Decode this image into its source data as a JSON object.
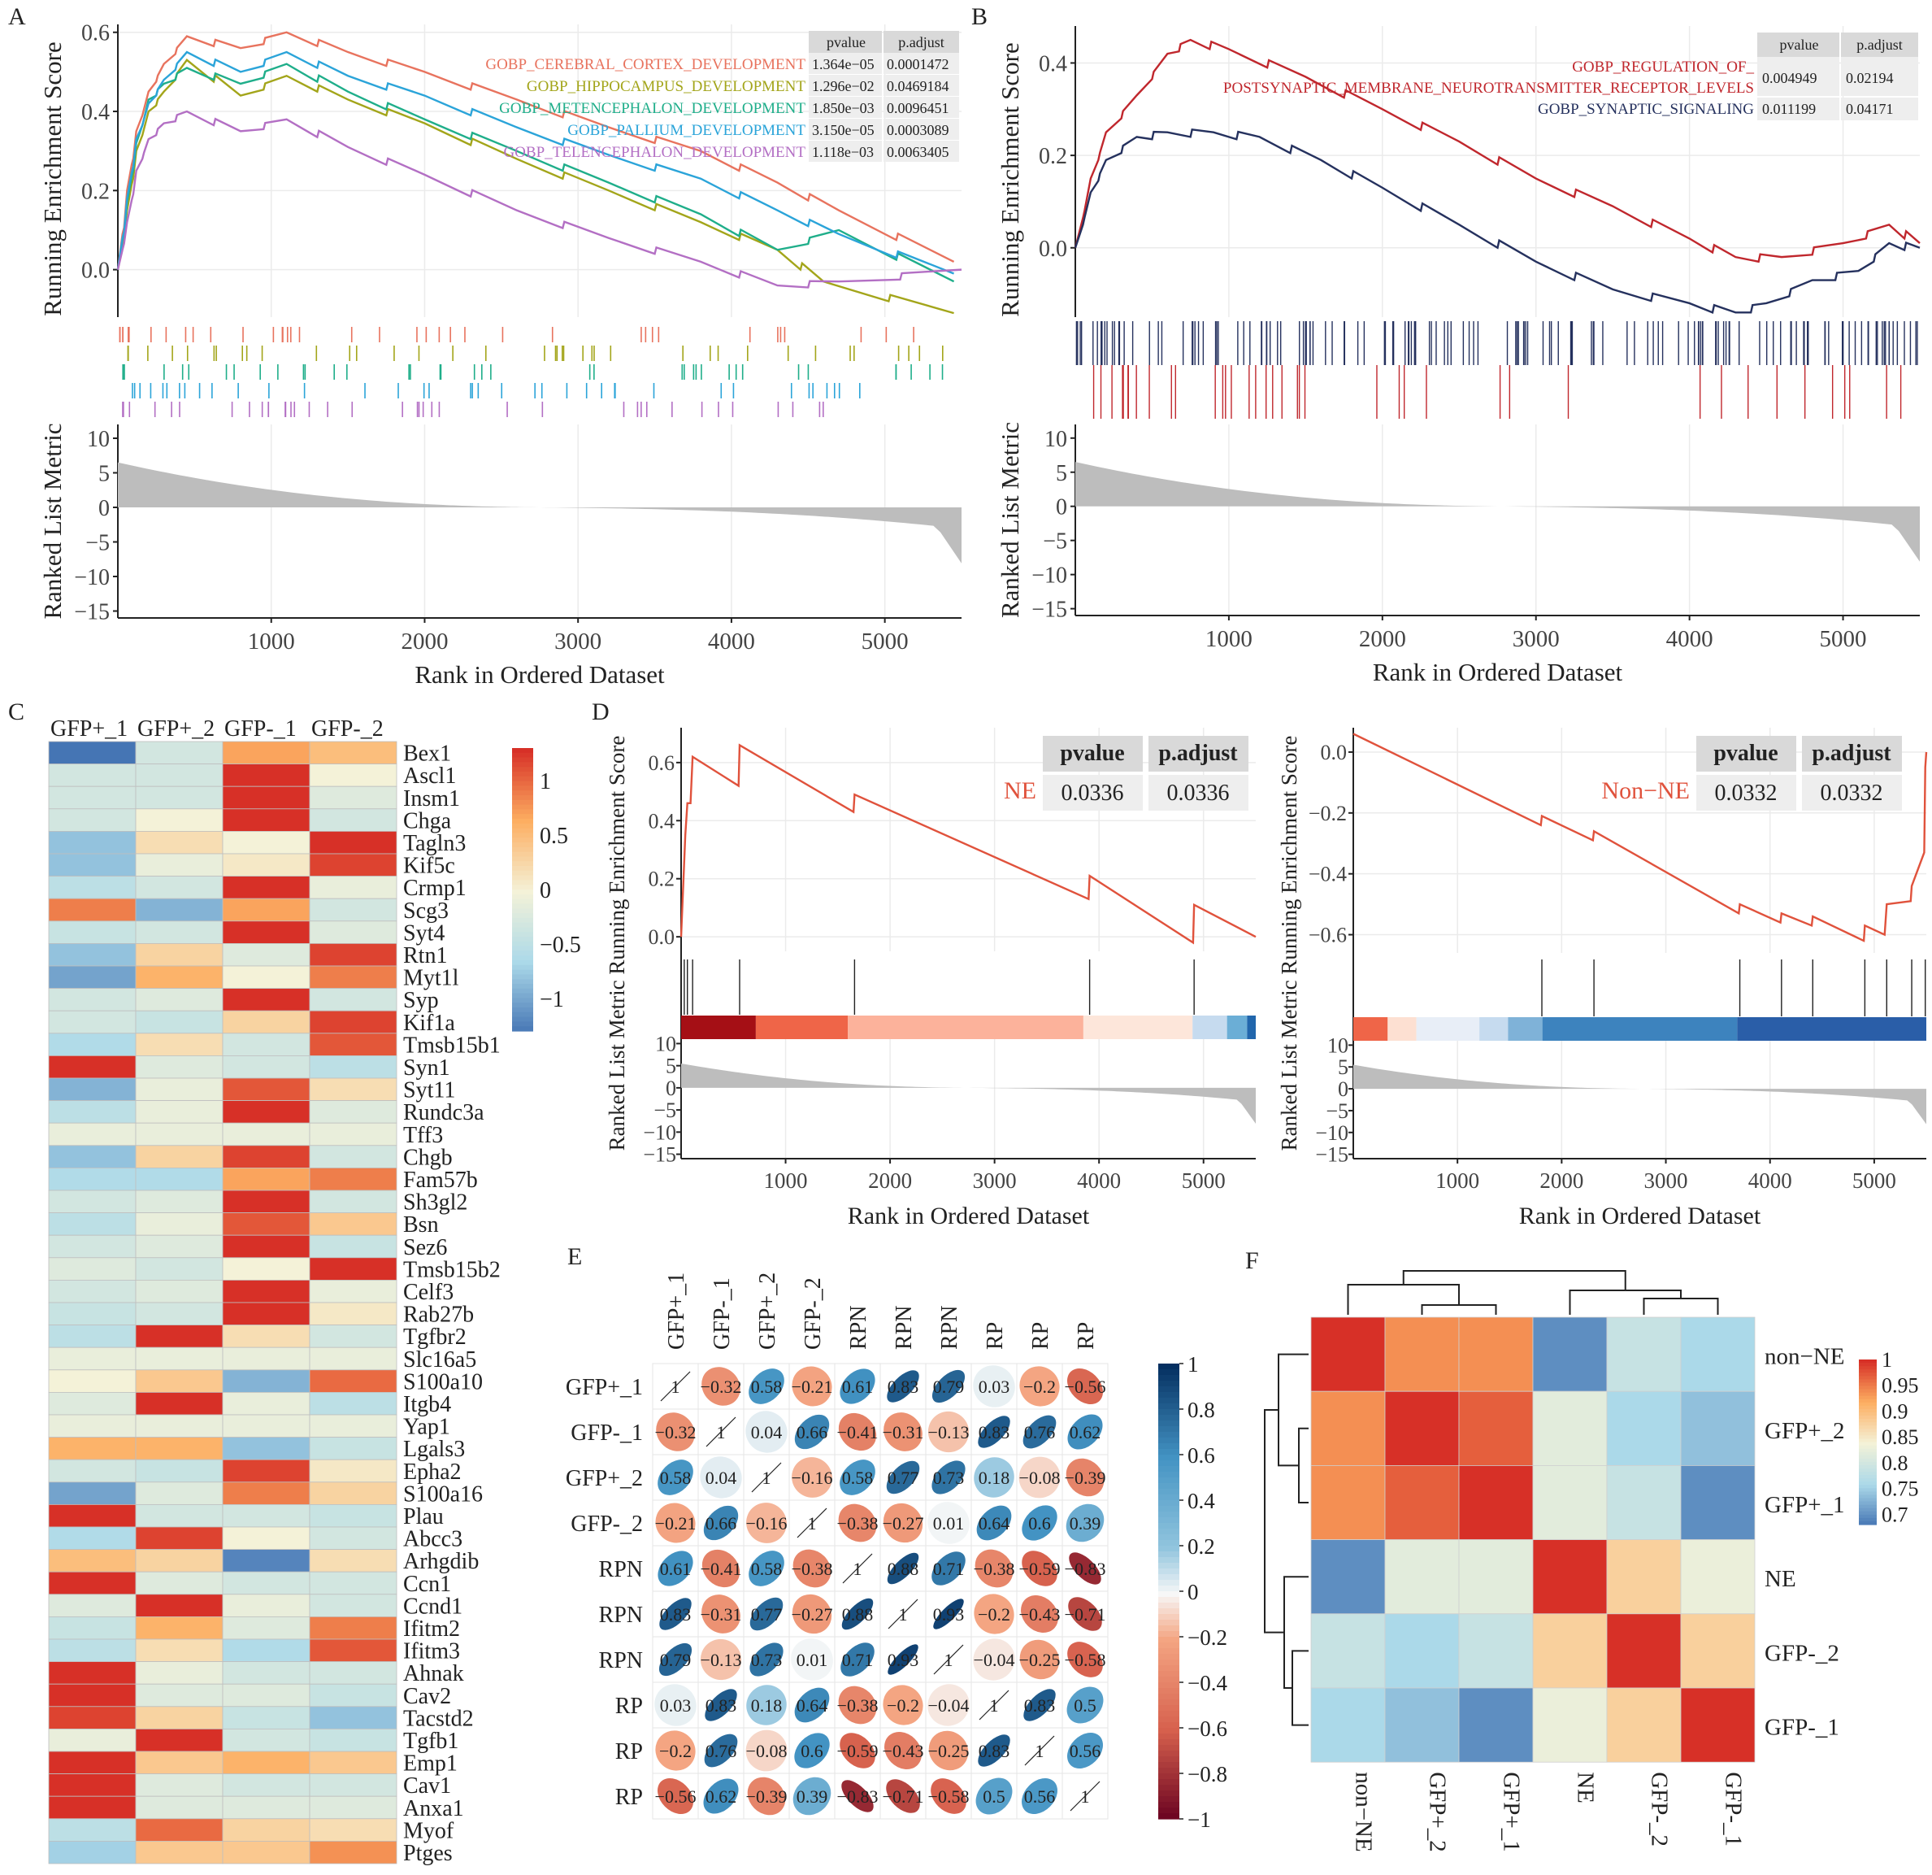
{
  "figure": {
    "panel_labels": [
      "A",
      "B",
      "C",
      "D",
      "E",
      "F"
    ],
    "running_label": "Running Enrichment Score",
    "ranked_label": "Ranked List Metric",
    "combined_label": "Ranked List Metric Running Enrichment Score",
    "rank_label": "Rank in Ordered Dataset",
    "pvalue_header": "pvalue",
    "padjust_header": "p.adjust"
  },
  "colors": {
    "red": "#d73027",
    "orange": "#f46d43",
    "yellow": "#fee090",
    "pale": "#f5f5dc",
    "lightblue": "#abd9e9",
    "blue": "#4575b4",
    "darkred": "#a50026",
    "darkblue": "#313695",
    "gseaRed": "#e8735e",
    "gseaOlive": "#a3a51a",
    "gseaTeal": "#1fae8a",
    "gseaBlue": "#2ba4d9",
    "gseaPurple": "#b36fc4"
  },
  "chart_data": [
    {
      "id": "A",
      "type": "line",
      "title": "",
      "xlabel": "Rank in Ordered Dataset",
      "ylabel": "Running Enrichment Score",
      "x_ticks": [
        1000,
        2000,
        3000,
        4000,
        5000
      ],
      "y_ticks": [
        0.0,
        0.2,
        0.4,
        0.6
      ],
      "ylim": [
        -0.12,
        0.62
      ],
      "xlim": [
        0,
        5500
      ],
      "ranked_ticks": [
        10,
        5,
        0,
        -5,
        -10,
        -15
      ],
      "series": [
        {
          "name": "GOBP_CEREBRAL_CORTEX_DEVELOPMENT",
          "pvalue": "1.364e−05",
          "padjust": "0.0001472",
          "color": "#e8735e",
          "x": [
            0,
            60,
            120,
            200,
            300,
            450,
            800,
            1100,
            1500,
            2000,
            2600,
            3200,
            3800,
            4300,
            4700,
            5450
          ],
          "y": [
            0,
            0.2,
            0.35,
            0.45,
            0.52,
            0.59,
            0.56,
            0.6,
            0.55,
            0.5,
            0.43,
            0.36,
            0.3,
            0.22,
            0.15,
            0.02
          ]
        },
        {
          "name": "GOBP_HIPPOCAMPUS_DEVELOPMENT",
          "pvalue": "1.296e−02",
          "padjust": "0.0469184",
          "color": "#a3a51a",
          "x": [
            0,
            60,
            120,
            200,
            300,
            450,
            800,
            1100,
            1500,
            2000,
            2600,
            3200,
            3800,
            4300,
            4600,
            5450
          ],
          "y": [
            0,
            0.15,
            0.3,
            0.4,
            0.45,
            0.53,
            0.44,
            0.49,
            0.43,
            0.37,
            0.28,
            0.2,
            0.12,
            0.05,
            -0.03,
            -0.11
          ]
        },
        {
          "name": "GOBP_METENCEPHALON_DEVELOPMENT",
          "pvalue": "1.850e−03",
          "padjust": "0.0096451",
          "color": "#1fae8a",
          "x": [
            0,
            60,
            120,
            200,
            300,
            450,
            800,
            1100,
            1500,
            2000,
            2600,
            3200,
            3800,
            4300,
            4700,
            5450
          ],
          "y": [
            0,
            0.17,
            0.32,
            0.43,
            0.47,
            0.51,
            0.47,
            0.52,
            0.45,
            0.38,
            0.3,
            0.22,
            0.14,
            0.05,
            0.1,
            -0.03
          ]
        },
        {
          "name": "GOBP_PALLIUM_DEVELOPMENT",
          "pvalue": "3.150e−05",
          "padjust": "0.0003089",
          "color": "#2ba4d9",
          "x": [
            0,
            60,
            120,
            200,
            300,
            450,
            800,
            1100,
            1500,
            2000,
            2600,
            3200,
            3800,
            4300,
            4700,
            5450
          ],
          "y": [
            0,
            0.18,
            0.33,
            0.42,
            0.48,
            0.55,
            0.5,
            0.55,
            0.49,
            0.44,
            0.36,
            0.29,
            0.23,
            0.15,
            0.09,
            -0.01
          ]
        },
        {
          "name": "GOBP_TELENCEPHALON_DEVELOPMENT",
          "pvalue": "1.118e−03",
          "padjust": "0.0063405",
          "color": "#b36fc4",
          "x": [
            0,
            60,
            120,
            200,
            300,
            450,
            800,
            1100,
            1500,
            2000,
            2600,
            3200,
            3800,
            4300,
            4700,
            5500
          ],
          "y": [
            0,
            0.12,
            0.25,
            0.33,
            0.37,
            0.4,
            0.35,
            0.38,
            0.31,
            0.24,
            0.15,
            0.08,
            0.02,
            -0.04,
            -0.03,
            0.0
          ]
        }
      ]
    },
    {
      "id": "B",
      "type": "line",
      "xlabel": "Rank in Ordered Dataset",
      "ylabel": "Running Enrichment Score",
      "x_ticks": [
        1000,
        2000,
        3000,
        4000,
        5000
      ],
      "y_ticks": [
        0.0,
        0.2,
        0.4
      ],
      "ylim": [
        -0.15,
        0.48
      ],
      "xlim": [
        0,
        5500
      ],
      "ranked_ticks": [
        10,
        5,
        0,
        -5,
        -10,
        -15
      ],
      "series": [
        {
          "name_line1": "GOBP_REGULATION_OF_",
          "name_line2": "POSTSYNAPTIC_MEMBRANE_NEUROTRANSMITTER_RECEPTOR_LEVELS",
          "pvalue": "0.004949",
          "padjust": "0.02194",
          "color": "#c0272d",
          "x": [
            0,
            100,
            200,
            400,
            600,
            750,
            1000,
            1500,
            2000,
            2500,
            3000,
            3500,
            4000,
            4300,
            4600,
            5000,
            5300,
            5500
          ],
          "y": [
            0,
            0.15,
            0.25,
            0.33,
            0.42,
            0.45,
            0.43,
            0.37,
            0.3,
            0.23,
            0.15,
            0.09,
            0.02,
            -0.02,
            -0.02,
            0.01,
            0.05,
            0.01
          ]
        },
        {
          "name": "GOBP_SYNAPTIC_SIGNALING",
          "pvalue": "0.011199",
          "padjust": "0.04171",
          "color": "#25315e",
          "x": [
            0,
            100,
            200,
            400,
            600,
            900,
            1200,
            1600,
            2000,
            2500,
            3000,
            3500,
            4000,
            4300,
            4500,
            4800,
            5100,
            5300,
            5500
          ],
          "y": [
            0,
            0.12,
            0.19,
            0.24,
            0.25,
            0.25,
            0.24,
            0.19,
            0.13,
            0.05,
            -0.03,
            -0.09,
            -0.12,
            -0.14,
            -0.12,
            -0.07,
            -0.05,
            0.01,
            0.0
          ]
        }
      ]
    },
    {
      "id": "C",
      "type": "heatmap",
      "columns": [
        "GFP+_1",
        "GFP+_2",
        "GFP-_1",
        "GFP-_2"
      ],
      "legend_ticks": [
        "1",
        "0.5",
        "0",
        "−0.5",
        "−1"
      ],
      "legend_range": [
        -1.3,
        1.3
      ],
      "rows": [
        "Bex1",
        "Ascl1",
        "Insm1",
        "Chga",
        "Tagln3",
        "Kif5c",
        "Crmp1",
        "Scg3",
        "Syt4",
        "Rtn1",
        "Myt1l",
        "Syp",
        "Kif1a",
        "Tmsb15b1",
        "Syn1",
        "Syt11",
        "Rundc3a",
        "Tff3",
        "Chgb",
        "Fam57b",
        "Sh3gl2",
        "Bsn",
        "Sez6",
        "Tmsb15b2",
        "Celf3",
        "Rab27b",
        "Tgfbr2",
        "Slc16a5",
        "S100a10",
        "Itgb4",
        "Yap1",
        "Lgals3",
        "Epha2",
        "S100a16",
        "Plau",
        "Abcc3",
        "Arhgdib",
        "Ccn1",
        "Ccnd1",
        "Ifitm2",
        "Ifitm3",
        "Ahnak",
        "Cav2",
        "Tacstd2",
        "Tgfb1",
        "Emp1",
        "Cav1",
        "Anxa1",
        "Myof",
        "Ptges"
      ],
      "values": [
        [
          -1.3,
          -0.3,
          0.7,
          0.5
        ],
        [
          -0.3,
          -0.3,
          1.4,
          0.0
        ],
        [
          -0.3,
          -0.3,
          1.4,
          -0.2
        ],
        [
          -0.3,
          0.0,
          1.4,
          -0.3
        ],
        [
          -0.8,
          0.2,
          0.0,
          1.3
        ],
        [
          -0.8,
          -0.1,
          0.1,
          1.2
        ],
        [
          -0.5,
          -0.3,
          1.3,
          -0.1
        ],
        [
          0.9,
          -0.9,
          0.7,
          -0.3
        ],
        [
          -0.4,
          -0.3,
          1.4,
          -0.2
        ],
        [
          -0.8,
          0.3,
          -0.2,
          1.2
        ],
        [
          -1.0,
          0.6,
          0.0,
          0.9
        ],
        [
          -0.3,
          -0.2,
          1.4,
          -0.3
        ],
        [
          -0.3,
          -0.4,
          0.3,
          1.2
        ],
        [
          -0.6,
          0.2,
          -0.3,
          1.1
        ],
        [
          1.4,
          -0.2,
          -0.3,
          -0.5
        ],
        [
          -0.9,
          -0.1,
          1.1,
          0.2
        ],
        [
          -0.5,
          -0.1,
          1.4,
          -0.2
        ],
        [
          -0.1,
          -0.1,
          -0.1,
          -0.1
        ],
        [
          -0.8,
          0.3,
          1.2,
          -0.3
        ],
        [
          -0.6,
          -0.6,
          0.7,
          0.9
        ],
        [
          -0.3,
          -0.2,
          1.4,
          -0.3
        ],
        [
          -0.5,
          -0.1,
          1.1,
          0.4
        ],
        [
          -0.3,
          -0.2,
          1.4,
          -0.4
        ],
        [
          -0.2,
          -0.3,
          0.0,
          1.4
        ],
        [
          -0.3,
          -0.2,
          1.4,
          -0.1
        ],
        [
          -0.4,
          -0.3,
          1.3,
          0.1
        ],
        [
          -0.5,
          1.3,
          0.2,
          -0.3
        ],
        [
          -0.1,
          -0.1,
          -0.1,
          -0.1
        ],
        [
          0.0,
          0.4,
          -0.9,
          1.0
        ],
        [
          -0.2,
          1.3,
          -0.1,
          -0.5
        ],
        [
          -0.1,
          -0.1,
          -0.1,
          -0.1
        ],
        [
          0.6,
          0.6,
          -0.8,
          -0.4
        ],
        [
          -0.3,
          -0.4,
          1.2,
          0.1
        ],
        [
          -1.0,
          -0.2,
          0.9,
          0.3
        ],
        [
          1.4,
          -0.3,
          -0.3,
          -0.4
        ],
        [
          -0.6,
          1.2,
          0.0,
          -0.3
        ],
        [
          0.5,
          0.3,
          -1.2,
          0.2
        ],
        [
          1.4,
          -0.2,
          -0.3,
          -0.3
        ],
        [
          -0.2,
          1.4,
          -0.1,
          -0.3
        ],
        [
          -0.4,
          0.6,
          -0.2,
          0.9
        ],
        [
          -0.5,
          0.2,
          -0.6,
          1.1
        ],
        [
          1.4,
          -0.1,
          -0.3,
          -0.3
        ],
        [
          1.4,
          -0.2,
          -0.2,
          -0.4
        ],
        [
          1.2,
          0.3,
          -0.4,
          -0.8
        ],
        [
          -0.1,
          1.4,
          -0.3,
          -0.4
        ],
        [
          1.4,
          0.4,
          0.6,
          0.4
        ],
        [
          1.4,
          -0.2,
          -0.3,
          -0.3
        ],
        [
          1.4,
          -0.2,
          -0.2,
          -0.2
        ],
        [
          -0.5,
          1.0,
          0.3,
          0.2
        ],
        [
          -0.7,
          0.4,
          0.4,
          0.8
        ]
      ]
    },
    {
      "id": "D1",
      "type": "line",
      "series_label": "NE",
      "pvalue": "0.0336",
      "padjust": "0.0336",
      "xlabel": "Rank in Ordered Dataset",
      "x_ticks": [
        1000,
        2000,
        3000,
        4000,
        5000
      ],
      "y_ticks": [
        0.0,
        0.2,
        0.4,
        0.6
      ],
      "ylim": [
        -0.05,
        0.72
      ],
      "xlim": [
        0,
        5500
      ],
      "ranked_ticks": [
        10,
        5,
        0,
        -5,
        -10,
        -15
      ],
      "x": [
        0,
        40,
        60,
        90,
        110,
        550,
        560,
        1650,
        1660,
        3900,
        3910,
        4900,
        4910,
        5500
      ],
      "y": [
        0,
        0.35,
        0.46,
        0.46,
        0.62,
        0.52,
        0.66,
        0.43,
        0.49,
        0.13,
        0.21,
        -0.02,
        0.11,
        0.0
      ],
      "hit_ranks": [
        30,
        60,
        110,
        560,
        1660,
        3910,
        4910
      ]
    },
    {
      "id": "D2",
      "type": "line",
      "series_label": "Non−NE",
      "pvalue": "0.0332",
      "padjust": "0.0332",
      "xlabel": "Rank in Ordered Dataset",
      "x_ticks": [
        1000,
        2000,
        3000,
        4000,
        5000
      ],
      "y_ticks": [
        0.0,
        -0.2,
        -0.4,
        -0.6
      ],
      "ylim": [
        -0.66,
        0.08
      ],
      "xlim": [
        0,
        5500
      ],
      "ranked_ticks": [
        10,
        5,
        0,
        -5,
        -10,
        -15
      ],
      "x": [
        0,
        1800,
        1810,
        2300,
        2310,
        3700,
        3710,
        4100,
        4110,
        4400,
        4410,
        4900,
        4910,
        5100,
        5120,
        5350,
        5360,
        5480,
        5490,
        5500
      ],
      "y": [
        0.06,
        -0.24,
        -0.21,
        -0.29,
        -0.26,
        -0.53,
        -0.5,
        -0.56,
        -0.53,
        -0.57,
        -0.54,
        -0.62,
        -0.57,
        -0.6,
        -0.5,
        -0.49,
        -0.44,
        -0.33,
        -0.05,
        0.0
      ],
      "hit_ranks": [
        1810,
        2310,
        3710,
        4110,
        4410,
        4910,
        5120,
        5360,
        5490
      ]
    },
    {
      "id": "E",
      "type": "heatmap",
      "labels": [
        "GFP+_1",
        "GFP-_1",
        "GFP+_2",
        "GFP-_2",
        "RPN",
        "RPN",
        "RPN",
        "RP",
        "RP",
        "RP"
      ],
      "legend_ticks": [
        "1",
        "0.8",
        "0.6",
        "0.4",
        "0.2",
        "0",
        "−0.2",
        "−0.4",
        "−0.6",
        "−0.8",
        "−1"
      ],
      "matrix": [
        [
          1,
          -0.32,
          0.58,
          -0.21,
          0.61,
          0.83,
          0.79,
          0.03,
          -0.2,
          -0.56
        ],
        [
          -0.32,
          1,
          0.04,
          0.66,
          -0.41,
          -0.31,
          -0.13,
          0.83,
          0.76,
          0.62
        ],
        [
          0.58,
          0.04,
          1,
          -0.16,
          0.58,
          0.77,
          0.73,
          0.18,
          -0.08,
          -0.39
        ],
        [
          -0.21,
          0.66,
          -0.16,
          1,
          -0.38,
          -0.27,
          0.01,
          0.64,
          0.6,
          0.39
        ],
        [
          0.61,
          -0.41,
          0.58,
          -0.38,
          1,
          0.88,
          0.71,
          -0.38,
          -0.59,
          -0.83
        ],
        [
          0.83,
          -0.31,
          0.77,
          -0.27,
          0.88,
          1,
          0.93,
          -0.2,
          -0.43,
          -0.71
        ],
        [
          0.79,
          -0.13,
          0.73,
          0.01,
          0.71,
          0.93,
          1,
          -0.04,
          -0.25,
          -0.58
        ],
        [
          0.03,
          0.83,
          0.18,
          0.64,
          -0.38,
          -0.2,
          -0.04,
          1,
          0.83,
          0.5
        ],
        [
          -0.2,
          0.76,
          -0.08,
          0.6,
          -0.59,
          -0.43,
          -0.25,
          0.83,
          1,
          0.56
        ],
        [
          -0.56,
          0.62,
          -0.39,
          0.39,
          -0.83,
          -0.71,
          -0.58,
          0.5,
          0.56,
          1
        ]
      ]
    },
    {
      "id": "F",
      "type": "heatmap",
      "col_labels": [
        "non−NE",
        "GFP+_2",
        "GFP+_1",
        "NE",
        "GFP-_2",
        "GFP-_1"
      ],
      "row_labels": [
        "non−NE",
        "GFP+_2",
        "GFP+_1",
        "NE",
        "GFP-_2",
        "GFP-_1"
      ],
      "legend_ticks": [
        "1",
        "0.95",
        "0.9",
        "0.85",
        "0.8",
        "0.75",
        "0.7"
      ],
      "legend_range": [
        0.68,
        1.0
      ],
      "matrix": [
        [
          1.0,
          0.94,
          0.94,
          0.7,
          0.79,
          0.76
        ],
        [
          0.94,
          1.0,
          0.97,
          0.82,
          0.76,
          0.74
        ],
        [
          0.94,
          0.97,
          1.0,
          0.82,
          0.79,
          0.7
        ],
        [
          0.7,
          0.82,
          0.82,
          1.0,
          0.88,
          0.83
        ],
        [
          0.79,
          0.76,
          0.79,
          0.88,
          1.0,
          0.88
        ],
        [
          0.76,
          0.74,
          0.7,
          0.83,
          0.88,
          1.0
        ]
      ]
    }
  ]
}
